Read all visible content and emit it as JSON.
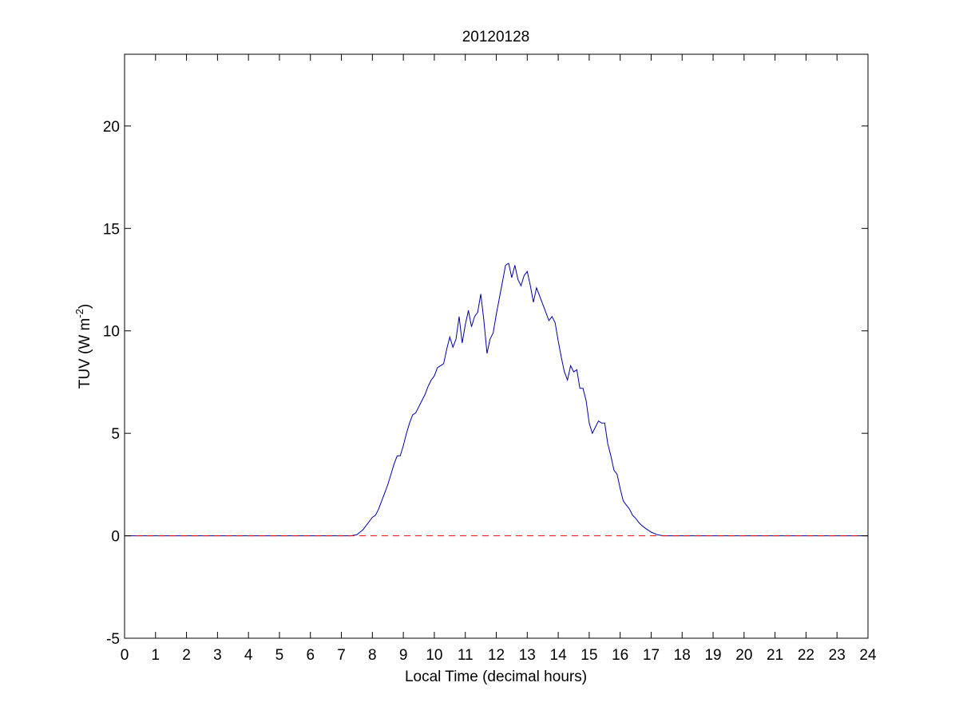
{
  "chart_data": {
    "type": "line",
    "title": "20120128",
    "xlabel": "Local Time (decimal hours)",
    "ylabel": "TUV (W m",
    "ylabel_superscript": "-2",
    "ylabel_suffix": ")",
    "xlim": [
      0,
      24
    ],
    "ylim": [
      -5,
      23.5
    ],
    "xticks": [
      0,
      1,
      2,
      3,
      4,
      5,
      6,
      7,
      8,
      9,
      10,
      11,
      12,
      13,
      14,
      15,
      16,
      17,
      18,
      19,
      20,
      21,
      22,
      23,
      24
    ],
    "yticks": [
      -5,
      0,
      5,
      10,
      15,
      20
    ],
    "grid": false,
    "series": [
      {
        "color": "#0000aa",
        "style": "solid",
        "x": [
          0,
          7.3,
          7.5,
          7.7,
          7.9,
          8.0,
          8.1,
          8.2,
          8.3,
          8.4,
          8.5,
          8.6,
          8.7,
          8.8,
          8.9,
          9.0,
          9.1,
          9.2,
          9.3,
          9.4,
          9.5,
          9.6,
          9.7,
          9.8,
          9.9,
          10.0,
          10.1,
          10.2,
          10.3,
          10.4,
          10.5,
          10.6,
          10.7,
          10.8,
          10.9,
          11.0,
          11.1,
          11.2,
          11.3,
          11.4,
          11.5,
          11.6,
          11.7,
          11.8,
          11.9,
          12.0,
          12.1,
          12.2,
          12.3,
          12.4,
          12.5,
          12.6,
          12.7,
          12.8,
          12.9,
          13.0,
          13.1,
          13.2,
          13.3,
          13.4,
          13.5,
          13.6,
          13.7,
          13.8,
          13.9,
          14.0,
          14.1,
          14.2,
          14.3,
          14.4,
          14.5,
          14.6,
          14.7,
          14.8,
          14.9,
          15.0,
          15.1,
          15.2,
          15.3,
          15.4,
          15.5,
          15.6,
          15.7,
          15.8,
          15.9,
          16.0,
          16.1,
          16.2,
          16.3,
          16.4,
          16.5,
          16.6,
          16.7,
          16.8,
          16.9,
          17.0,
          17.2,
          17.4,
          17.6,
          24
        ],
        "y": [
          0,
          0,
          0.05,
          0.3,
          0.7,
          0.9,
          1.0,
          1.3,
          1.7,
          2.1,
          2.5,
          3.0,
          3.5,
          3.9,
          3.9,
          4.4,
          5.0,
          5.5,
          5.9,
          6.0,
          6.3,
          6.6,
          6.9,
          7.3,
          7.6,
          7.8,
          8.2,
          8.3,
          8.4,
          9.1,
          9.7,
          9.2,
          9.6,
          10.7,
          9.4,
          10.3,
          11.0,
          10.2,
          10.7,
          10.9,
          11.8,
          10.5,
          8.9,
          9.6,
          9.9,
          10.8,
          11.6,
          12.4,
          13.2,
          13.3,
          12.6,
          13.2,
          12.5,
          12.2,
          12.7,
          12.9,
          12.2,
          11.4,
          12.1,
          11.7,
          11.3,
          10.9,
          10.5,
          10.7,
          10.4,
          9.5,
          8.7,
          8.0,
          7.6,
          8.3,
          8.0,
          8.1,
          7.2,
          7.2,
          6.6,
          5.5,
          5.0,
          5.3,
          5.6,
          5.5,
          5.5,
          4.5,
          3.9,
          3.2,
          3.0,
          2.3,
          1.7,
          1.5,
          1.3,
          1.0,
          0.85,
          0.65,
          0.5,
          0.38,
          0.28,
          0.18,
          0.05,
          0,
          0,
          0
        ]
      },
      {
        "color": "#ff0000",
        "style": "dashed",
        "x": [
          0,
          24
        ],
        "y": [
          0,
          0
        ]
      }
    ]
  }
}
